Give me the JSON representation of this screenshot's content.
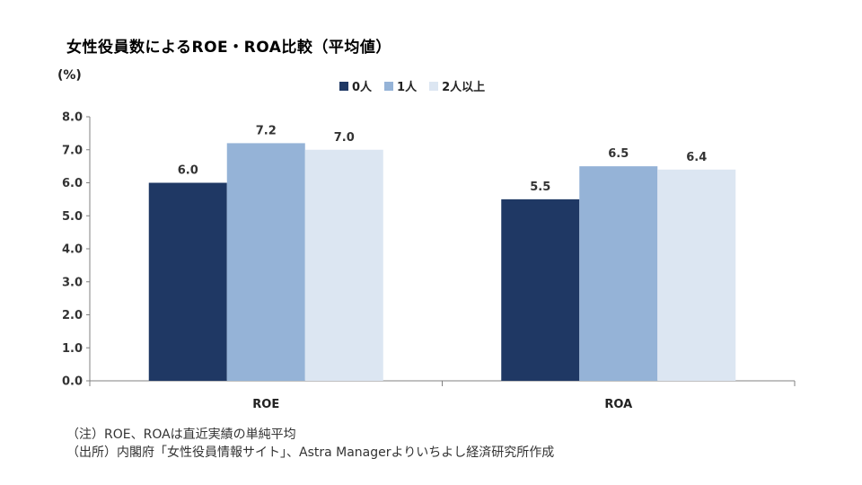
{
  "title": "女性役員数によるROE・ROA比較（平均値）",
  "unit_label": "(%)",
  "colors": {
    "series0": "#1f3864",
    "series1": "#95b3d7",
    "series2": "#dce6f2",
    "axis": "#808080"
  },
  "legend": [
    {
      "label": "0人",
      "color": "#1f3864",
      "icon": "square"
    },
    {
      "label": "1人",
      "color": "#95b3d7",
      "icon": "square"
    },
    {
      "label": "2人以上",
      "color": "#dce6f2",
      "icon": "square"
    }
  ],
  "notes": {
    "note1": "（注）ROE、ROAは直近実績の単純平均",
    "note2": "（出所）内閣府「女性役員情報サイト」、Astra Managerよりいちよし経済研究所作成"
  },
  "chart_data": {
    "type": "bar",
    "title": "女性役員数によるROE・ROA比較（平均値）",
    "ylabel": "(%)",
    "xlabel": "",
    "categories": [
      "ROE",
      "ROA"
    ],
    "series": [
      {
        "name": "0人",
        "values": [
          6.0,
          5.5
        ],
        "labels": [
          "6.0",
          "5.5"
        ]
      },
      {
        "name": "1人",
        "values": [
          7.2,
          6.5
        ],
        "labels": [
          "7.2",
          "6.5"
        ]
      },
      {
        "name": "2人以上",
        "values": [
          7.0,
          6.4
        ],
        "labels": [
          "7.0",
          "6.4"
        ]
      }
    ],
    "ylim": [
      0,
      8
    ],
    "yticks": [
      "0.0",
      "1.0",
      "2.0",
      "3.0",
      "4.0",
      "5.0",
      "6.0",
      "7.0",
      "8.0"
    ],
    "grid": false,
    "legend_position": "top"
  }
}
